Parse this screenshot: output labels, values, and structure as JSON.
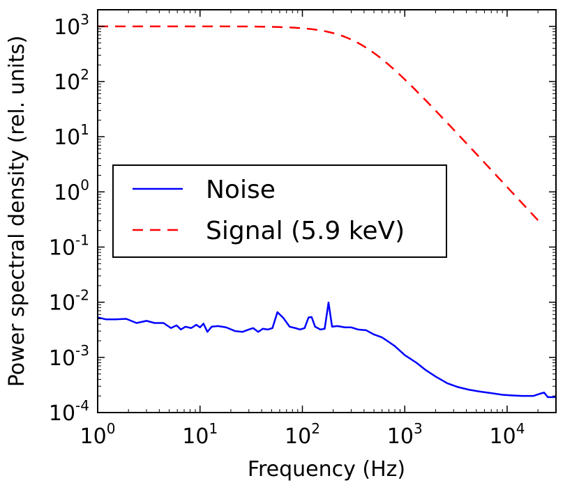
{
  "chart_data": {
    "type": "line",
    "xscale": "log",
    "yscale": "log",
    "xlim": [
      1,
      30000
    ],
    "ylim": [
      0.0001,
      2000
    ],
    "xlabel": "Frequency (Hz)",
    "ylabel": "Power spectral density (rel. units)",
    "x_ticks": [
      {
        "value": 1,
        "base": "10",
        "exp": "0"
      },
      {
        "value": 10,
        "base": "10",
        "exp": "1"
      },
      {
        "value": 100,
        "base": "10",
        "exp": "2"
      },
      {
        "value": 1000,
        "base": "10",
        "exp": "3"
      },
      {
        "value": 10000,
        "base": "10",
        "exp": "4"
      }
    ],
    "y_ticks": [
      {
        "value": 0.0001,
        "base": "10",
        "exp": "-4"
      },
      {
        "value": 0.001,
        "base": "10",
        "exp": "-3"
      },
      {
        "value": 0.01,
        "base": "10",
        "exp": "-2"
      },
      {
        "value": 0.1,
        "base": "10",
        "exp": "-1"
      },
      {
        "value": 1,
        "base": "10",
        "exp": "0"
      },
      {
        "value": 10,
        "base": "10",
        "exp": "1"
      },
      {
        "value": 100,
        "base": "10",
        "exp": "2"
      },
      {
        "value": 1000,
        "base": "10",
        "exp": "3"
      }
    ],
    "legend": {
      "location": "center-left"
    },
    "series": [
      {
        "name": "Noise",
        "color": "#0000ff",
        "style": "solid",
        "points": [
          [
            1.0,
            0.0053
          ],
          [
            1.2,
            0.0049
          ],
          [
            1.5,
            0.0049
          ],
          [
            1.9,
            0.005
          ],
          [
            2.4,
            0.0042
          ],
          [
            3.0,
            0.0046
          ],
          [
            3.6,
            0.0042
          ],
          [
            4.4,
            0.0042
          ],
          [
            5.2,
            0.0034
          ],
          [
            5.9,
            0.0038
          ],
          [
            6.5,
            0.0032
          ],
          [
            7.2,
            0.0036
          ],
          [
            8.2,
            0.0034
          ],
          [
            9.2,
            0.0039
          ],
          [
            10.0,
            0.0035
          ],
          [
            10.8,
            0.0041
          ],
          [
            11.8,
            0.0029
          ],
          [
            13.0,
            0.0036
          ],
          [
            15.0,
            0.0037
          ],
          [
            18.0,
            0.0035
          ],
          [
            22.0,
            0.003
          ],
          [
            26.0,
            0.0029
          ],
          [
            30.0,
            0.0032
          ],
          [
            33.0,
            0.0034
          ],
          [
            37.0,
            0.0029
          ],
          [
            41.0,
            0.0033
          ],
          [
            46.0,
            0.0032
          ],
          [
            51.0,
            0.0034
          ],
          [
            57.0,
            0.0066
          ],
          [
            65.0,
            0.0052
          ],
          [
            75.0,
            0.0036
          ],
          [
            85.0,
            0.0034
          ],
          [
            95.0,
            0.0032
          ],
          [
            105.0,
            0.0034
          ],
          [
            115.0,
            0.0053
          ],
          [
            123.0,
            0.0054
          ],
          [
            133.0,
            0.0036
          ],
          [
            150.0,
            0.0032
          ],
          [
            165.0,
            0.0033
          ],
          [
            180.0,
            0.0099
          ],
          [
            195.0,
            0.0036
          ],
          [
            220.0,
            0.0037
          ],
          [
            260.0,
            0.0035
          ],
          [
            300.0,
            0.0035
          ],
          [
            350.0,
            0.0032
          ],
          [
            420.0,
            0.0031
          ],
          [
            500.0,
            0.0026
          ],
          [
            600.0,
            0.0023
          ],
          [
            700.0,
            0.0019
          ],
          [
            800.0,
            0.0016
          ],
          [
            1000.0,
            0.0011
          ],
          [
            1300.0,
            0.0008
          ],
          [
            1600.0,
            0.00059
          ],
          [
            2000.0,
            0.00045
          ],
          [
            2600.0,
            0.00034
          ],
          [
            3300.0,
            0.00029
          ],
          [
            4200.0,
            0.00026
          ],
          [
            5400.0,
            0.00024
          ],
          [
            7000.0,
            0.000225
          ],
          [
            9000.0,
            0.00021
          ],
          [
            11000.0,
            0.000205
          ],
          [
            14000.0,
            0.0002
          ],
          [
            18000.0,
            0.0002
          ],
          [
            21000.0,
            0.00022
          ],
          [
            23000.0,
            0.00023
          ],
          [
            25000.0,
            0.00019
          ],
          [
            30000.0,
            0.00019
          ]
        ]
      },
      {
        "name": "Signal (5.9 keV)",
        "color": "#ff0000",
        "style": "dashed",
        "model": "lorentzian",
        "plateau": 1000,
        "corner_hz": 350,
        "x_range": [
          1,
          21000
        ]
      }
    ]
  }
}
